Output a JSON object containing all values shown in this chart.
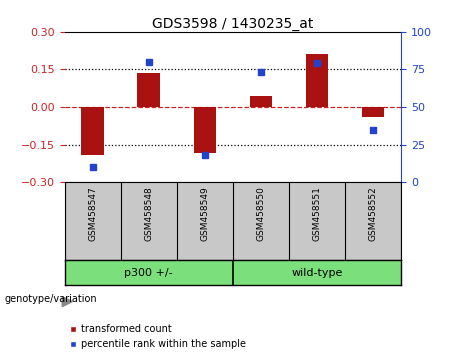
{
  "title": "GDS3598 / 1430235_at",
  "samples": [
    "GSM458547",
    "GSM458548",
    "GSM458549",
    "GSM458550",
    "GSM458551",
    "GSM458552"
  ],
  "red_values": [
    -0.19,
    0.135,
    -0.185,
    0.045,
    0.21,
    -0.04
  ],
  "blue_values_pct": [
    10,
    80,
    18,
    73,
    79,
    35
  ],
  "ylim_left": [
    -0.3,
    0.3
  ],
  "ylim_right": [
    0,
    100
  ],
  "yticks_left": [
    -0.3,
    -0.15,
    0,
    0.15,
    0.3
  ],
  "yticks_right": [
    0,
    25,
    50,
    75,
    100
  ],
  "left_color": "#cc2222",
  "right_color": "#2244cc",
  "bar_color": "#aa1111",
  "dot_color": "#2244cc",
  "hline_color": "#cc2222",
  "grid_color": "#000000",
  "bg_color": "#ffffff",
  "plot_bg": "#ffffff",
  "label_bg": "#c8c8c8",
  "group_bg": "#7be07b",
  "genotype_label": "genotype/variation",
  "legend_red": "transformed count",
  "legend_blue": "percentile rank within the sample",
  "group1_label": "p300 +/-",
  "group2_label": "wild-type",
  "group1_samples": [
    0,
    1,
    2
  ],
  "group2_samples": [
    3,
    4,
    5
  ]
}
